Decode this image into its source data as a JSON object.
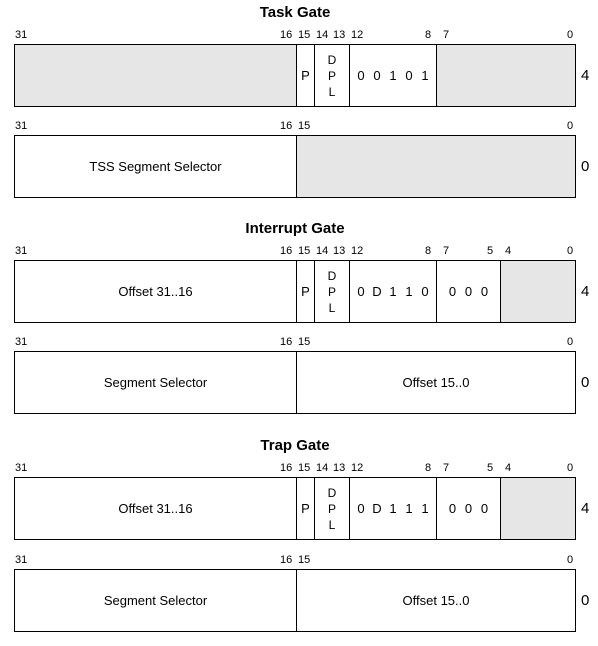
{
  "task_gate": {
    "title": "Task Gate",
    "row_hi": {
      "bit_labels": [
        "31",
        "16",
        "15",
        "14",
        "13",
        "12",
        "8",
        "7",
        "0"
      ],
      "p": "P",
      "dpl": [
        "D",
        "P",
        "L"
      ],
      "type_bits": [
        "0",
        "0",
        "1",
        "0",
        "1"
      ],
      "index": "4"
    },
    "row_lo": {
      "bit_labels": [
        "31",
        "16",
        "15",
        "0"
      ],
      "selector": "TSS Segment Selector",
      "index": "0"
    }
  },
  "interrupt_gate": {
    "title": "Interrupt Gate",
    "row_hi": {
      "bit_labels": [
        "31",
        "16",
        "15",
        "14",
        "13",
        "12",
        "8",
        "7",
        "5",
        "4",
        "0"
      ],
      "offset": "Offset 31..16",
      "p": "P",
      "dpl": [
        "D",
        "P",
        "L"
      ],
      "type_bits": [
        "0",
        "D",
        "1",
        "1",
        "0"
      ],
      "zero_bits": [
        "0",
        "0",
        "0"
      ],
      "index": "4"
    },
    "row_lo": {
      "bit_labels": [
        "31",
        "16",
        "15",
        "0"
      ],
      "selector": "Segment Selector",
      "offset": "Offset 15..0",
      "index": "0"
    }
  },
  "trap_gate": {
    "title": "Trap Gate",
    "row_hi": {
      "bit_labels": [
        "31",
        "16",
        "15",
        "14",
        "13",
        "12",
        "8",
        "7",
        "5",
        "4",
        "0"
      ],
      "offset": "Offset 31..16",
      "p": "P",
      "dpl": [
        "D",
        "P",
        "L"
      ],
      "type_bits": [
        "0",
        "D",
        "1",
        "1",
        "1"
      ],
      "zero_bits": [
        "0",
        "0",
        "0"
      ],
      "index": "4"
    },
    "row_lo": {
      "bit_labels": [
        "31",
        "16",
        "15",
        "0"
      ],
      "selector": "Segment Selector",
      "offset": "Offset 15..0",
      "index": "0"
    }
  }
}
